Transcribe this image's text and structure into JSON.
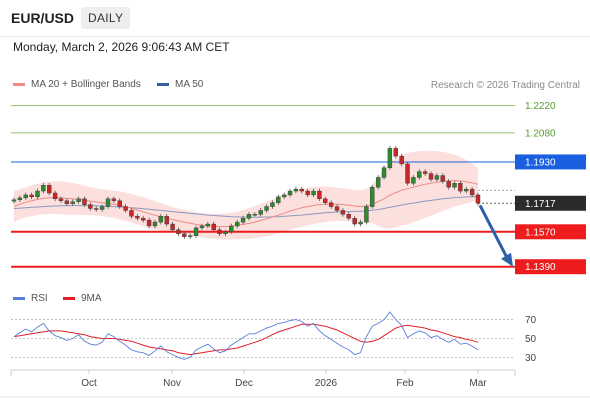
{
  "header": {
    "pair": "EUR/USD",
    "timeframe": "DAILY",
    "timestamp": "Monday, March 2, 2026 9:06:43 AM CET"
  },
  "legend": {
    "items": [
      {
        "label": "MA 20 + Bollinger Bands",
        "color": "#f28b82"
      },
      {
        "label": "MA 50",
        "color": "#35609f"
      }
    ],
    "credit": "Research © 2026 Trading Central"
  },
  "rsi_legend": {
    "items": [
      {
        "label": "RSI",
        "color": "#5b7fd6"
      },
      {
        "label": "9MA",
        "color": "#e0202a"
      }
    ]
  },
  "chart_data": {
    "type": "line",
    "instrument": "EUR/USD",
    "timeframe": "DAILY",
    "price_axis": {
      "ylim": [
        1.127,
        1.2275
      ]
    },
    "x_axis": {
      "tick_labels": [
        "Oct",
        "Nov",
        "Dec",
        "2026",
        "Feb",
        "Mar"
      ]
    },
    "series": [
      {
        "name": "",
        "kind": "price",
        "values": [
          1.1735,
          1.1745,
          1.176,
          1.175,
          1.178,
          1.181,
          1.177,
          1.174,
          1.173,
          1.1715,
          1.1725,
          1.174,
          1.171,
          1.169,
          1.1685,
          1.17,
          1.174,
          1.173,
          1.17,
          1.168,
          1.165,
          1.164,
          1.163,
          1.16,
          1.162,
          1.165,
          1.161,
          1.158,
          1.156,
          1.1545,
          1.155,
          1.159,
          1.16,
          1.161,
          1.158,
          1.156,
          1.157,
          1.16,
          1.162,
          1.164,
          1.166,
          1.166,
          1.168,
          1.17,
          1.172,
          1.175,
          1.176,
          1.178,
          1.179,
          1.178,
          1.176,
          1.178,
          1.174,
          1.172,
          1.17,
          1.168,
          1.166,
          1.164,
          1.161,
          1.162,
          1.17,
          1.18,
          1.185,
          1.19,
          1.2,
          1.196,
          1.192,
          1.182,
          1.185,
          1.188,
          1.187,
          1.184,
          1.186,
          1.183,
          1.18,
          1.182,
          1.178,
          1.179,
          1.176,
          1.1717
        ]
      },
      {
        "name": "MA 20",
        "kind": "ma20",
        "values": [
          1.17,
          1.1712,
          1.1722,
          1.173,
          1.1737,
          1.1742,
          1.1745,
          1.1746,
          1.1745,
          1.1742,
          1.174,
          1.1737,
          1.1732,
          1.1728,
          1.1724,
          1.172,
          1.1716,
          1.1712,
          1.1706,
          1.1699,
          1.1691,
          1.1682,
          1.1673,
          1.1663,
          1.1655,
          1.1648,
          1.1641,
          1.1633,
          1.1626,
          1.162,
          1.1614,
          1.1608,
          1.1604,
          1.16,
          1.1598,
          1.1597,
          1.1597,
          1.1599,
          1.1603,
          1.1608,
          1.1613,
          1.162,
          1.1628,
          1.1637,
          1.1646,
          1.1656,
          1.1666,
          1.1677,
          1.1686,
          1.1694,
          1.17,
          1.1706,
          1.171,
          1.1712,
          1.1713,
          1.1712,
          1.171,
          1.1707,
          1.1703,
          1.17,
          1.1703,
          1.1712,
          1.1725,
          1.174,
          1.1758,
          1.1772,
          1.1784,
          1.1792,
          1.18,
          1.1808,
          1.1815,
          1.182,
          1.1826,
          1.183,
          1.1832,
          1.1834,
          1.1832,
          1.1828,
          1.1822,
          1.1815
        ]
      },
      {
        "name": "MA 50",
        "kind": "ma50",
        "values": [
          1.169,
          1.1692,
          1.1694,
          1.1696,
          1.1698,
          1.17,
          1.1702,
          1.1703,
          1.1704,
          1.1705,
          1.1705,
          1.1705,
          1.1705,
          1.1705,
          1.1704,
          1.1703,
          1.1702,
          1.17,
          1.1698,
          1.1696,
          1.1694,
          1.1692,
          1.1689,
          1.1686,
          1.1683,
          1.168,
          1.1677,
          1.1674,
          1.1671,
          1.1668,
          1.1665,
          1.1662,
          1.1659,
          1.1656,
          1.1654,
          1.1652,
          1.165,
          1.1648,
          1.1647,
          1.1646,
          1.1645,
          1.1645,
          1.1645,
          1.1646,
          1.1647,
          1.1648,
          1.165,
          1.1652,
          1.1654,
          1.1656,
          1.1659,
          1.1662,
          1.1665,
          1.1668,
          1.167,
          1.1672,
          1.1673,
          1.1674,
          1.1675,
          1.1676,
          1.1678,
          1.1681,
          1.1685,
          1.169,
          1.1696,
          1.1702,
          1.1708,
          1.1713,
          1.1718,
          1.1723,
          1.1728,
          1.1732,
          1.1736,
          1.174,
          1.1743,
          1.1746,
          1.1748,
          1.175,
          1.1751,
          1.1752
        ]
      },
      {
        "name": "Bollinger upper",
        "kind": "bb_upper",
        "values": [
          1.178,
          1.179,
          1.18,
          1.181,
          1.1818,
          1.1824,
          1.1828,
          1.183,
          1.183,
          1.1826,
          1.1822,
          1.1816,
          1.1808,
          1.18,
          1.1794,
          1.179,
          1.1786,
          1.1782,
          1.1778,
          1.1772,
          1.1764,
          1.1756,
          1.1748,
          1.1738,
          1.1728,
          1.1718,
          1.1708,
          1.1698,
          1.169,
          1.1682,
          1.1676,
          1.167,
          1.1666,
          1.1664,
          1.1662,
          1.1662,
          1.1664,
          1.1668,
          1.1674,
          1.1682,
          1.1692,
          1.1702,
          1.1714,
          1.1726,
          1.1738,
          1.175,
          1.1762,
          1.1774,
          1.1784,
          1.1792,
          1.1798,
          1.1802,
          1.1804,
          1.1804,
          1.1802,
          1.1798,
          1.1794,
          1.179,
          1.1786,
          1.1784,
          1.179,
          1.181,
          1.185,
          1.189,
          1.193,
          1.195,
          1.1966,
          1.1976,
          1.1982,
          1.1986,
          1.1988,
          1.1988,
          1.1986,
          1.1982,
          1.1976,
          1.1968,
          1.1956,
          1.194,
          1.192,
          1.19
        ]
      },
      {
        "name": "Bollinger lower",
        "kind": "bb_lower",
        "values": [
          1.162,
          1.1634,
          1.1644,
          1.165,
          1.1656,
          1.166,
          1.1662,
          1.1662,
          1.166,
          1.1658,
          1.1658,
          1.1658,
          1.1656,
          1.1656,
          1.1654,
          1.165,
          1.1646,
          1.1642,
          1.1634,
          1.1626,
          1.1618,
          1.1608,
          1.1598,
          1.1588,
          1.1582,
          1.1578,
          1.1574,
          1.1568,
          1.1562,
          1.1558,
          1.1552,
          1.1546,
          1.1542,
          1.1536,
          1.1534,
          1.1532,
          1.153,
          1.153,
          1.1532,
          1.1534,
          1.1534,
          1.1538,
          1.1542,
          1.1548,
          1.1554,
          1.1562,
          1.157,
          1.158,
          1.1588,
          1.1596,
          1.1602,
          1.161,
          1.1616,
          1.162,
          1.1624,
          1.1626,
          1.1626,
          1.1624,
          1.162,
          1.1616,
          1.1616,
          1.1614,
          1.16,
          1.159,
          1.1586,
          1.1594,
          1.1602,
          1.1608,
          1.1618,
          1.163,
          1.1642,
          1.1652,
          1.1666,
          1.1678,
          1.1688,
          1.17,
          1.1708,
          1.1716,
          1.1724,
          1.173
        ]
      }
    ],
    "levels": [
      {
        "label": "1.2220",
        "value": 1.222,
        "role": "target",
        "color": "#8fc26a"
      },
      {
        "label": "1.2080",
        "value": 1.208,
        "role": "target",
        "color": "#8fc26a"
      },
      {
        "label": "1.1930",
        "value": 1.193,
        "role": "pivot",
        "color": "#1a5fe0"
      },
      {
        "label": "1.1717",
        "value": 1.1717,
        "role": "last",
        "color": "#2b2b2b"
      },
      {
        "label": "1.1570",
        "value": 1.157,
        "role": "target",
        "color": "#ee1c1c"
      },
      {
        "label": "1.1390",
        "value": 1.139,
        "role": "target",
        "color": "#ee1c1c"
      }
    ],
    "forecast_arrow": {
      "from": 1.1717,
      "to": 1.139,
      "direction": "down",
      "color": "#2d5fa8"
    },
    "rsi": {
      "ylim": [
        22,
        78
      ],
      "tick_labels": [
        "70",
        "50",
        "30"
      ],
      "tick_values": [
        70,
        50,
        30
      ],
      "rsi_values": [
        52,
        56,
        60,
        57,
        62,
        66,
        58,
        53,
        51,
        48,
        50,
        54,
        47,
        44,
        43,
        46,
        55,
        52,
        47,
        43,
        38,
        36,
        35,
        32,
        37,
        42,
        36,
        33,
        30,
        28,
        30,
        38,
        41,
        44,
        39,
        35,
        37,
        43,
        47,
        51,
        55,
        55,
        58,
        61,
        63,
        66,
        67,
        69,
        70,
        68,
        63,
        66,
        58,
        53,
        49,
        45,
        41,
        38,
        33,
        35,
        52,
        63,
        66,
        70,
        78,
        70,
        64,
        51,
        55,
        58,
        56,
        51,
        53,
        49,
        46,
        49,
        44,
        45,
        42,
        38
      ],
      "ma9_values": [
        52,
        53,
        54,
        55,
        56,
        57,
        58,
        58,
        58,
        57,
        56,
        55,
        54,
        52,
        51,
        50,
        50,
        50,
        49,
        48,
        47,
        45,
        43,
        41,
        40,
        39,
        38,
        37,
        35,
        34,
        33,
        34,
        35,
        36,
        37,
        38,
        38,
        39,
        40,
        42,
        44,
        46,
        48,
        51,
        54,
        57,
        59,
        61,
        63,
        65,
        65,
        65,
        64,
        63,
        61,
        59,
        56,
        53,
        50,
        47,
        46,
        47,
        49,
        53,
        57,
        61,
        63,
        64,
        63,
        62,
        61,
        59,
        58,
        56,
        54,
        52,
        51,
        49,
        48,
        46
      ]
    }
  }
}
